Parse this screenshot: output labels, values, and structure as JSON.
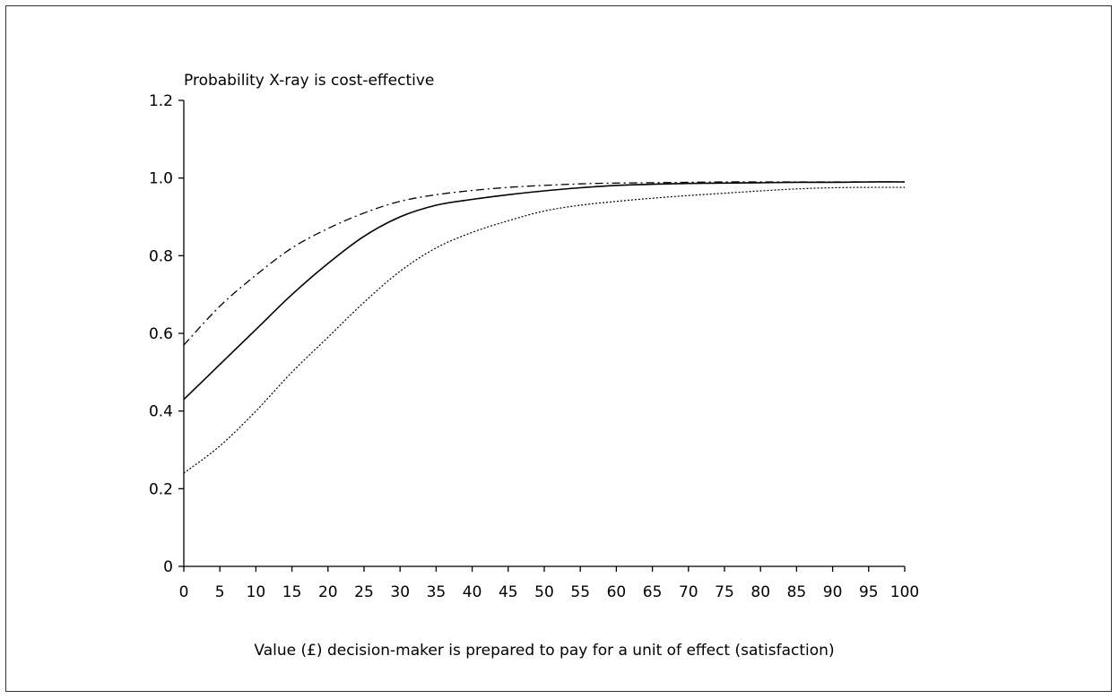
{
  "chart_data": {
    "type": "line",
    "title": "",
    "ylabel": "Probability X-ray is cost-effective",
    "xlabel": "Value (£) decision-maker is prepared to pay for a unit of effect (satisfaction)",
    "xlim": [
      0,
      100
    ],
    "ylim": [
      0,
      1.2
    ],
    "x_ticks": [
      0,
      5,
      10,
      15,
      20,
      25,
      30,
      35,
      40,
      45,
      50,
      55,
      60,
      65,
      70,
      75,
      80,
      85,
      90,
      95,
      100
    ],
    "y_ticks": [
      0,
      0.2,
      0.4,
      0.6,
      0.8,
      1.0,
      1.2
    ],
    "y_tick_labels": [
      "0",
      "0.2",
      "0.4",
      "0.6",
      "0.8",
      "1.0",
      "1.2"
    ],
    "grid": false,
    "series": [
      {
        "style": "solid",
        "x": [
          0,
          5,
          10,
          15,
          20,
          25,
          30,
          35,
          40,
          45,
          50,
          55,
          60,
          65,
          70,
          75,
          80,
          85,
          90,
          95,
          100
        ],
        "y": [
          0.43,
          0.52,
          0.61,
          0.7,
          0.78,
          0.85,
          0.9,
          0.93,
          0.945,
          0.957,
          0.967,
          0.975,
          0.981,
          0.984,
          0.986,
          0.987,
          0.988,
          0.989,
          0.989,
          0.99,
          0.99
        ]
      },
      {
        "style": "dash-dot",
        "x": [
          0,
          5,
          10,
          15,
          20,
          25,
          30,
          35,
          40,
          45,
          50,
          55,
          60,
          65,
          70,
          75,
          80,
          85,
          90,
          95,
          100
        ],
        "y": [
          0.57,
          0.67,
          0.75,
          0.82,
          0.87,
          0.91,
          0.94,
          0.957,
          0.968,
          0.976,
          0.981,
          0.985,
          0.987,
          0.988,
          0.989,
          0.99,
          0.99,
          0.99,
          0.99,
          0.99,
          0.99
        ]
      },
      {
        "style": "dotted",
        "x": [
          0,
          5,
          10,
          15,
          20,
          25,
          30,
          35,
          40,
          45,
          50,
          55,
          60,
          65,
          70,
          75,
          80,
          85,
          90,
          95,
          100
        ],
        "y": [
          0.24,
          0.31,
          0.4,
          0.5,
          0.59,
          0.68,
          0.76,
          0.82,
          0.86,
          0.89,
          0.915,
          0.93,
          0.94,
          0.948,
          0.955,
          0.961,
          0.967,
          0.972,
          0.975,
          0.976,
          0.976
        ]
      }
    ]
  }
}
